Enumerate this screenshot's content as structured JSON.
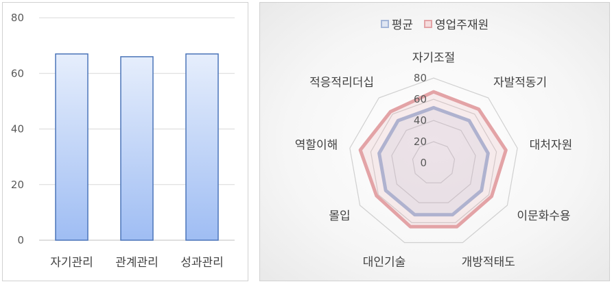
{
  "chart_data": [
    {
      "type": "bar",
      "categories": [
        "자기관리",
        "관계관리",
        "성과관리"
      ],
      "values": [
        67,
        66,
        67
      ],
      "ylim": [
        0,
        80
      ],
      "yticks": [
        0,
        20,
        40,
        60,
        80
      ],
      "grid": true,
      "legend": false,
      "bar_color": "#6f9ae8"
    },
    {
      "type": "radar",
      "categories": [
        "자기조절",
        "자발적동기",
        "대처자원",
        "이문화수용",
        "개방적태도",
        "대인기술",
        "몰입",
        "역할이해",
        "적응적리더십"
      ],
      "rlim": [
        0,
        80
      ],
      "rticks": [
        0,
        20,
        40,
        60,
        80
      ],
      "legend_position": "top",
      "series": [
        {
          "name": "평균",
          "values": [
            52,
            52,
            52,
            52,
            52,
            52,
            52,
            52,
            52
          ],
          "color": "#a4b6d8"
        },
        {
          "name": "영업주재원",
          "values": [
            67,
            66,
            69,
            63,
            64,
            64,
            62,
            70,
            63
          ],
          "color": "#e3a3a6"
        }
      ]
    }
  ]
}
